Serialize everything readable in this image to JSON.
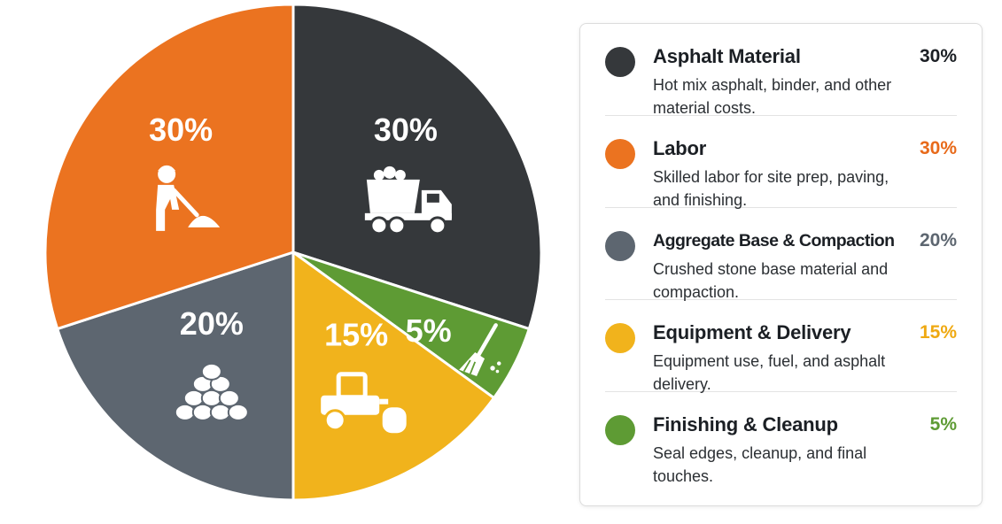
{
  "chart_data": {
    "type": "pie",
    "categories": [
      "Asphalt Material",
      "Finishing & Cleanup",
      "Equipment & Delivery",
      "Aggregate Base & Compaction",
      "Labor"
    ],
    "values": [
      30,
      5,
      15,
      20,
      30
    ],
    "colors": [
      "#35383b",
      "#5e9b34",
      "#f1b31c",
      "#5d6670",
      "#eb7320"
    ],
    "pct_colors": [
      "#1b1f24",
      "#5e9b34",
      "#efa912",
      "#5d6670",
      "#e86a1a"
    ],
    "labels": [
      "30%",
      "5%",
      "15%",
      "20%",
      "30%"
    ],
    "icons": [
      "dump-truck-icon",
      "broom-icon",
      "road-roller-icon",
      "aggregate-stones-icon",
      "worker-shoveling-icon"
    ],
    "title": "",
    "legend_position": "right"
  },
  "legend": [
    {
      "title": "Asphalt Material",
      "pct": "30%",
      "desc": "Hot mix asphalt, binder, and other material costs.",
      "color": "#35383b",
      "pct_color": "#1b1f24"
    },
    {
      "title": "Labor",
      "pct": "30%",
      "desc": "Skilled labor for site prep, paving, and finishing.",
      "color": "#eb7320",
      "pct_color": "#e86a1a"
    },
    {
      "title": "Aggregate Base & Compaction",
      "pct": "20%",
      "desc": "Crushed stone base material and compaction.",
      "color": "#5d6670",
      "pct_color": "#5d6670"
    },
    {
      "title": "Equipment & Delivery",
      "pct": "15%",
      "desc": "Equipment use, fuel, and asphalt delivery.",
      "color": "#f1b31c",
      "pct_color": "#efa912"
    },
    {
      "title": "Finishing & Cleanup",
      "pct": "5%",
      "desc": "Seal edges, cleanup, and final touches.",
      "color": "#5e9b34",
      "pct_color": "#5e9b34"
    }
  ]
}
